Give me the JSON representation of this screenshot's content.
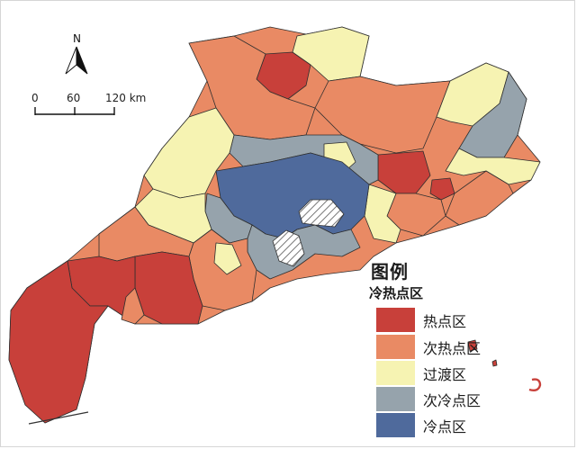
{
  "map": {
    "compass_label": "N",
    "scale": {
      "ticks": [
        "0",
        "60",
        "120 km"
      ]
    },
    "colors": {
      "hot": "#c8403a",
      "sub_hot": "#e98a64",
      "transition": "#f6f3b2",
      "sub_cold": "#96a3ac",
      "cold": "#4f6a9c",
      "hatched": "#ffffff"
    }
  },
  "legend": {
    "title": "图例",
    "subtitle": "冷热点区",
    "items": [
      {
        "label": "热点区",
        "color": "#c8403a"
      },
      {
        "label": "次热点区",
        "color": "#e98a64"
      },
      {
        "label": "过渡区",
        "color": "#f6f3b2"
      },
      {
        "label": "次冷点区",
        "color": "#96a3ac"
      },
      {
        "label": "冷点区",
        "color": "#4f6a9c"
      }
    ]
  }
}
